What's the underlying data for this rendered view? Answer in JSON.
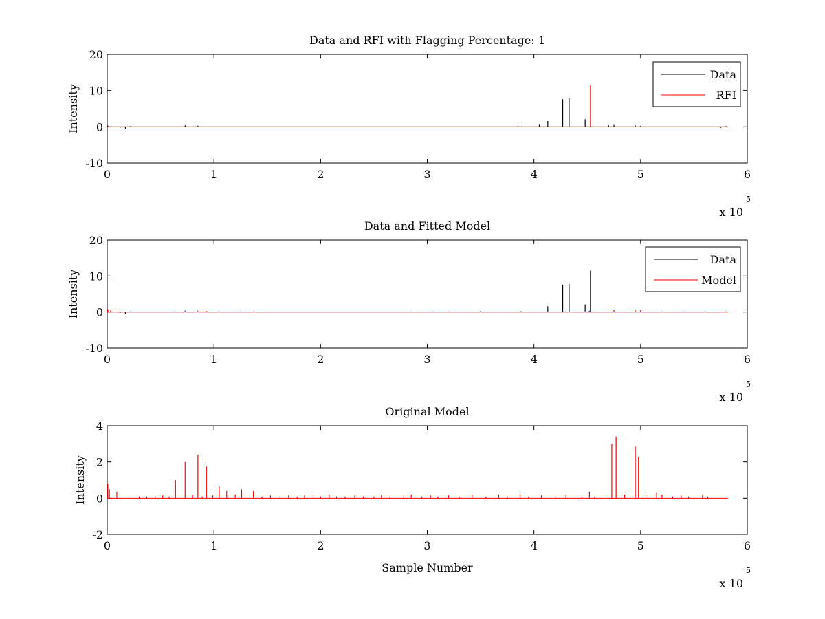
{
  "colors": {
    "data": "#000000",
    "rfi": "#ff0000",
    "model": "#ff0000",
    "background": "#ffffff"
  },
  "chart_data": [
    {
      "type": "line",
      "title": "Data and RFI with Flagging Percentage: 1",
      "xlabel": "",
      "ylabel": "Intensity",
      "xlim": [
        0,
        6
      ],
      "ylim": [
        -10,
        20
      ],
      "xticks": [
        "0",
        "1",
        "2",
        "3",
        "4",
        "5",
        "6"
      ],
      "yticks": [
        "-10",
        "0",
        "10",
        "20"
      ],
      "x_multiplier": {
        "base": "x 10",
        "exponent": "5"
      },
      "legend_position": "top-right",
      "grid": false,
      "series": [
        {
          "name": "Data",
          "color": "#000000",
          "baseline": 0,
          "spikes": [
            [
              0.005,
              0.3
            ],
            [
              0.12,
              -0.3
            ],
            [
              0.17,
              -0.5
            ],
            [
              0.22,
              0.2
            ],
            [
              0.73,
              0.4
            ],
            [
              0.85,
              0.3
            ],
            [
              3.85,
              0.3
            ],
            [
              4.05,
              0.6
            ],
            [
              4.13,
              1.6
            ],
            [
              4.27,
              7.6
            ],
            [
              4.33,
              7.8
            ],
            [
              4.48,
              2.1
            ],
            [
              4.7,
              0.4
            ],
            [
              4.75,
              0.5
            ],
            [
              4.95,
              0.4
            ],
            [
              5.0,
              0.3
            ],
            [
              5.75,
              -0.3
            ],
            [
              5.8,
              0.2
            ]
          ]
        },
        {
          "name": "RFI",
          "color": "#ff0000",
          "baseline": 0,
          "spikes": [
            [
              4.53,
              11.5
            ]
          ]
        }
      ]
    },
    {
      "type": "line",
      "title": "Data and Fitted Model",
      "xlabel": "",
      "ylabel": "Intensity",
      "xlim": [
        0,
        6
      ],
      "ylim": [
        -10,
        20
      ],
      "xticks": [
        "0",
        "1",
        "2",
        "3",
        "4",
        "5",
        "6"
      ],
      "yticks": [
        "-10",
        "0",
        "10",
        "20"
      ],
      "x_multiplier": {
        "base": "x 10",
        "exponent": "5"
      },
      "legend_position": "top-right",
      "grid": false,
      "series": [
        {
          "name": "Data",
          "color": "#000000",
          "baseline": 0,
          "spikes": [
            [
              0.005,
              0.6
            ],
            [
              0.12,
              -0.3
            ],
            [
              0.17,
              -0.5
            ],
            [
              0.22,
              0.2
            ],
            [
              0.73,
              0.3
            ],
            [
              0.85,
              0.3
            ],
            [
              4.13,
              1.6
            ],
            [
              4.27,
              7.6
            ],
            [
              4.33,
              7.8
            ],
            [
              4.48,
              2.1
            ],
            [
              4.53,
              11.5
            ],
            [
              4.75,
              0.5
            ],
            [
              5.0,
              0.3
            ],
            [
              5.8,
              0.2
            ]
          ]
        },
        {
          "name": "Model",
          "color": "#ff0000",
          "baseline": 0,
          "spikes": [
            [
              0.005,
              0.8
            ],
            [
              0.03,
              0.4
            ],
            [
              0.63,
              0.2
            ],
            [
              0.73,
              0.4
            ],
            [
              0.85,
              0.4
            ],
            [
              0.93,
              0.3
            ],
            [
              1.05,
              0.2
            ],
            [
              1.25,
              0.2
            ],
            [
              1.37,
              0.2
            ],
            [
              2.85,
              0.2
            ],
            [
              3.05,
              0.2
            ],
            [
              3.2,
              0.2
            ],
            [
              3.5,
              0.3
            ],
            [
              3.88,
              0.3
            ],
            [
              4.3,
              0.3
            ],
            [
              4.52,
              0.4
            ],
            [
              4.75,
              0.6
            ],
            [
              4.95,
              0.6
            ],
            [
              5.0,
              0.5
            ],
            [
              5.2,
              0.2
            ],
            [
              5.4,
              0.2
            ],
            [
              5.6,
              0.2
            ]
          ]
        }
      ]
    },
    {
      "type": "line",
      "title": "Original Model",
      "xlabel": "Sample Number",
      "ylabel": "Intensity",
      "xlim": [
        0,
        6
      ],
      "ylim": [
        -2,
        4
      ],
      "xticks": [
        "0",
        "1",
        "2",
        "3",
        "4",
        "5",
        "6"
      ],
      "yticks": [
        "-2",
        "0",
        "2",
        "4"
      ],
      "x_multiplier": {
        "base": "x 10",
        "exponent": "5"
      },
      "legend_position": "none",
      "grid": false,
      "series": [
        {
          "color": "#ff0000",
          "baseline": 0,
          "spikes": [
            [
              0.005,
              0.8
            ],
            [
              0.02,
              0.5
            ],
            [
              0.09,
              0.35
            ],
            [
              0.3,
              0.1
            ],
            [
              0.37,
              0.1
            ],
            [
              0.45,
              0.1
            ],
            [
              0.52,
              0.15
            ],
            [
              0.58,
              0.1
            ],
            [
              0.64,
              1.0
            ],
            [
              0.73,
              2.0
            ],
            [
              0.8,
              0.15
            ],
            [
              0.85,
              2.4
            ],
            [
              0.89,
              0.1
            ],
            [
              0.93,
              1.75
            ],
            [
              0.99,
              0.15
            ],
            [
              1.05,
              0.65
            ],
            [
              1.12,
              0.4
            ],
            [
              1.2,
              0.2
            ],
            [
              1.26,
              0.5
            ],
            [
              1.37,
              0.4
            ],
            [
              1.45,
              0.1
            ],
            [
              1.53,
              0.15
            ],
            [
              1.62,
              0.1
            ],
            [
              1.7,
              0.15
            ],
            [
              1.78,
              0.1
            ],
            [
              1.85,
              0.15
            ],
            [
              1.93,
              0.2
            ],
            [
              2.0,
              0.1
            ],
            [
              2.08,
              0.2
            ],
            [
              2.15,
              0.1
            ],
            [
              2.23,
              0.1
            ],
            [
              2.32,
              0.15
            ],
            [
              2.4,
              0.1
            ],
            [
              2.5,
              0.1
            ],
            [
              2.57,
              0.15
            ],
            [
              2.65,
              0.1
            ],
            [
              2.78,
              0.15
            ],
            [
              2.85,
              0.2
            ],
            [
              2.95,
              0.1
            ],
            [
              3.03,
              0.15
            ],
            [
              3.1,
              0.1
            ],
            [
              3.2,
              0.15
            ],
            [
              3.3,
              0.1
            ],
            [
              3.42,
              0.2
            ],
            [
              3.55,
              0.1
            ],
            [
              3.67,
              0.2
            ],
            [
              3.75,
              0.1
            ],
            [
              3.87,
              0.2
            ],
            [
              3.95,
              0.1
            ],
            [
              4.07,
              0.15
            ],
            [
              4.2,
              0.1
            ],
            [
              4.3,
              0.2
            ],
            [
              4.45,
              0.1
            ],
            [
              4.52,
              0.35
            ],
            [
              4.57,
              0.1
            ],
            [
              4.73,
              3.0
            ],
            [
              4.77,
              3.4
            ],
            [
              4.85,
              0.2
            ],
            [
              4.95,
              2.85
            ],
            [
              4.98,
              2.3
            ],
            [
              5.05,
              0.2
            ],
            [
              5.15,
              0.3
            ],
            [
              5.2,
              0.2
            ],
            [
              5.3,
              0.1
            ],
            [
              5.38,
              0.15
            ],
            [
              5.45,
              0.1
            ],
            [
              5.58,
              0.15
            ],
            [
              5.63,
              0.1
            ]
          ]
        }
      ]
    }
  ]
}
